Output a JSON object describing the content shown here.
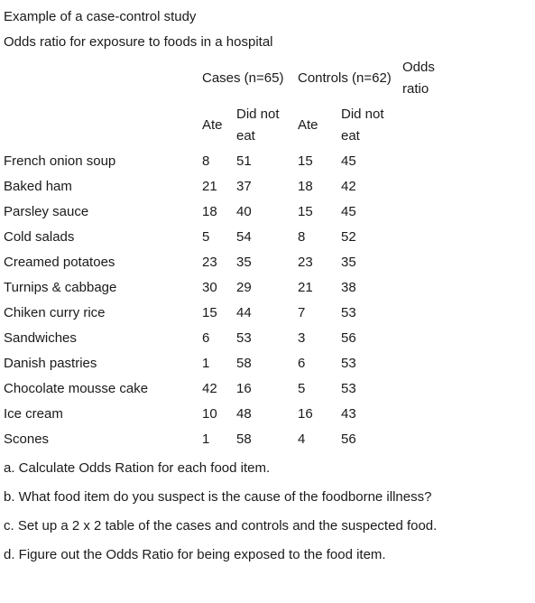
{
  "title": "Example of a case-control study",
  "subtitle": "Odds ratio for exposure to foods in a hospital",
  "table": {
    "cases_header": "Cases (n=65)",
    "controls_header": "Controls (n=62)",
    "odds_ratio_header": [
      "Odds",
      "ratio"
    ],
    "ate_label": "Ate",
    "did_not_eat_label": [
      "Did not",
      "eat"
    ],
    "rows": [
      {
        "food": "French onion soup",
        "cases_ate": "8",
        "cases_not": "51",
        "controls_ate": "15",
        "controls_not": "45"
      },
      {
        "food": "Baked ham",
        "cases_ate": "21",
        "cases_not": "37",
        "controls_ate": "18",
        "controls_not": "42"
      },
      {
        "food": "Parsley sauce",
        "cases_ate": "18",
        "cases_not": "40",
        "controls_ate": "15",
        "controls_not": "45"
      },
      {
        "food": "Cold salads",
        "cases_ate": "5",
        "cases_not": "54",
        "controls_ate": "8",
        "controls_not": "52"
      },
      {
        "food": "Creamed potatoes",
        "cases_ate": "23",
        "cases_not": "35",
        "controls_ate": "23",
        "controls_not": "35"
      },
      {
        "food": "Turnips & cabbage",
        "cases_ate": "30",
        "cases_not": "29",
        "controls_ate": "21",
        "controls_not": "38"
      },
      {
        "food": "Chiken curry rice",
        "cases_ate": "15",
        "cases_not": "44",
        "controls_ate": "7",
        "controls_not": "53"
      },
      {
        "food": "Sandwiches",
        "cases_ate": "6",
        "cases_not": "53",
        "controls_ate": "3",
        "controls_not": "56"
      },
      {
        "food": "Danish pastries",
        "cases_ate": "1",
        "cases_not": "58",
        "controls_ate": "6",
        "controls_not": "53"
      },
      {
        "food": "Chocolate mousse cake",
        "cases_ate": "42",
        "cases_not": "16",
        "controls_ate": "5",
        "controls_not": "53"
      },
      {
        "food": "Ice cream",
        "cases_ate": "10",
        "cases_not": "48",
        "controls_ate": "16",
        "controls_not": "43"
      },
      {
        "food": "Scones",
        "cases_ate": "1",
        "cases_not": "58",
        "controls_ate": "4",
        "controls_not": "56"
      }
    ]
  },
  "questions": [
    "a. Calculate Odds Ration for each food item.",
    "b. What food item do you suspect is the cause of the foodborne illness?",
    "c. Set up a 2 x 2 table of the cases and controls and the suspected food.",
    "d. Figure out the Odds Ratio for being exposed to the food item."
  ]
}
